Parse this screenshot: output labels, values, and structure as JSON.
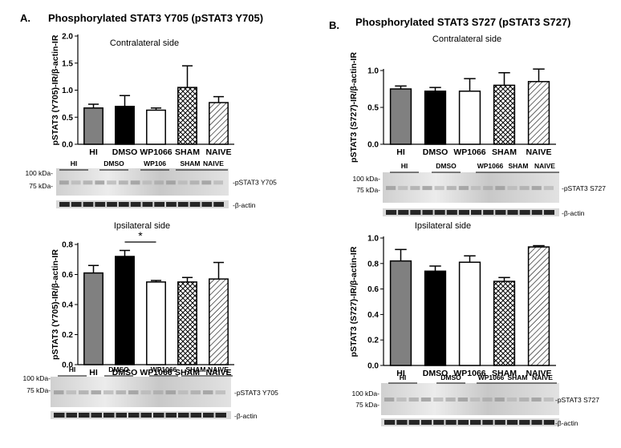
{
  "panels": [
    {
      "letter": "A.",
      "title": "Phosphorylated STAT3 Y705 (pSTAT3 Y705)",
      "blots": {
        "top": {
          "groups": [
            "HI",
            "DMSO",
            "WP106",
            "SHAM",
            "NAIVE"
          ],
          "markers": [
            "100 kDa-",
            "75 kDa-"
          ],
          "band_labels": [
            "-pSTAT3 Y705",
            "-β-actin"
          ]
        },
        "bottom": {
          "groups": [
            "HI",
            "DMSO",
            "WP1066",
            "SHAM",
            "NAIVE"
          ],
          "markers": [
            "100 kDa-",
            "75 kDa-"
          ],
          "band_labels": [
            "-pSTAT3 Y705",
            "-β-actin"
          ]
        }
      }
    },
    {
      "letter": "B.",
      "title": "Phosphorylated STAT3 S727 (pSTAT3 S727)",
      "blots": {
        "top": {
          "groups": [
            "HI",
            "DMSO",
            "WP1066",
            "SHAM",
            "NAIVE"
          ],
          "markers": [
            "100 kDa-",
            "75 kDa-"
          ],
          "band_labels": [
            "-pSTAT3 S727",
            "-β-actin"
          ]
        },
        "bottom": {
          "groups": [
            "HI",
            "DMSO",
            "WP1066",
            "SHAM",
            "NAIVE"
          ],
          "markers": [
            "100 kDa-",
            "75 kDa-"
          ],
          "band_labels": [
            "-pSTAT3 S727",
            "-β-actin"
          ]
        }
      }
    }
  ],
  "chart_data": [
    {
      "type": "bar",
      "title": "Contralateral side",
      "ylabel": "pSTAT3 (Y705)-IR/β-actin-IR",
      "categories": [
        "HI",
        "DMSO",
        "WP1066",
        "SHAM",
        "NAIVE"
      ],
      "values": [
        0.67,
        0.7,
        0.63,
        1.05,
        0.77
      ],
      "errors": [
        0.07,
        0.2,
        0.04,
        0.4,
        0.11
      ],
      "patterns": [
        "gray",
        "black",
        "white",
        "crosshatch",
        "diagonal"
      ],
      "ylim": [
        0,
        2.0
      ],
      "yticks": [
        "0.0",
        "0.5",
        "1.0",
        "1.5",
        "2.0"
      ]
    },
    {
      "type": "bar",
      "title": "Ipsilateral side",
      "ylabel": "pSTAT3 (Y705)-IR/β-actin-IR",
      "categories": [
        "HI",
        "DMSO",
        "WP1066",
        "SHAM",
        "NAIVE"
      ],
      "values": [
        0.61,
        0.72,
        0.55,
        0.55,
        0.57
      ],
      "errors": [
        0.05,
        0.04,
        0.01,
        0.03,
        0.11
      ],
      "patterns": [
        "gray",
        "black",
        "white",
        "crosshatch",
        "diagonal"
      ],
      "ylim": [
        0,
        0.8
      ],
      "yticks": [
        "0.0",
        "0.2",
        "0.4",
        "0.6",
        "0.8"
      ],
      "significance": {
        "from": "DMSO",
        "to": "WP1066",
        "label": "*"
      }
    },
    {
      "type": "bar",
      "title": "Contralateral side",
      "ylabel": "pSTAT3 (S727)-IR/β-actin-IR",
      "categories": [
        "HI",
        "DMSO",
        "WP1066",
        "SHAM",
        "NAIVE"
      ],
      "values": [
        0.75,
        0.72,
        0.72,
        0.8,
        0.85
      ],
      "errors": [
        0.04,
        0.05,
        0.17,
        0.17,
        0.17
      ],
      "patterns": [
        "gray",
        "black",
        "white",
        "crosshatch",
        "diagonal"
      ],
      "ylim": [
        0,
        1.0
      ],
      "yticks": [
        "0.0",
        "0.5",
        "1.0"
      ]
    },
    {
      "type": "bar",
      "title": "Ipsilateral side",
      "ylabel": "pSTAT3 (S727)-IR/β-actin-IR",
      "categories": [
        "HI",
        "DMSO",
        "WP1066",
        "SHAM",
        "NAIVE"
      ],
      "values": [
        0.82,
        0.74,
        0.81,
        0.66,
        0.93
      ],
      "errors": [
        0.09,
        0.04,
        0.05,
        0.03,
        0.01
      ],
      "patterns": [
        "gray",
        "black",
        "white",
        "crosshatch",
        "diagonal"
      ],
      "ylim": [
        0,
        1.0
      ],
      "yticks": [
        "0.0",
        "0.2",
        "0.4",
        "0.6",
        "0.8",
        "1.0"
      ]
    }
  ]
}
